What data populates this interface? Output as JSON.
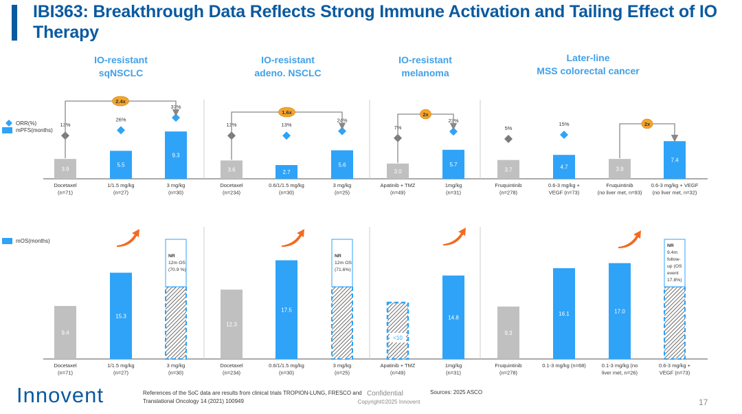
{
  "title": "IBI363: Breakthrough Data Reflects Strong Immune Activation and Tailing Effect of IO Therapy",
  "colors": {
    "title": "#0a5aa0",
    "panel_title": "#41a0e8",
    "ibi363": "#2ea3f8",
    "soc": "#c0c0c0",
    "marker_soc": "#7a7a7a",
    "badge": "#f5a42b",
    "arrow": "#f26b21"
  },
  "legend": {
    "orr": "ORR(%)",
    "mpfs": "mPFS(months)",
    "mos": "mOS(months)"
  },
  "chart_data": {
    "type": "bar",
    "title": "IBI363: Breakthrough Data Reflects Strong Immune Activation and Tailing Effect of IO Therapy",
    "panels": [
      {
        "title": [
          "IO-resistant",
          "sqNSCLC"
        ],
        "pfs": {
          "categories": [
            [
              "Docetaxel",
              "(n=71)"
            ],
            [
              "1/1.5 mg/kg",
              "(n=27)"
            ],
            [
              "3 mg/kg",
              "(n=30)"
            ]
          ],
          "values": [
            3.9,
            5.5,
            9.3
          ],
          "value_labels": [
            "3.9",
            "5.5",
            "9.3"
          ],
          "orr": [
            13,
            26,
            37
          ],
          "orr_labels": [
            "13%",
            "26%",
            "37%"
          ],
          "soc": [
            true,
            false,
            false
          ],
          "fold": {
            "label": "2.4x",
            "from": 0,
            "to": 2
          }
        },
        "os": {
          "categories": [
            [
              "Docetaxel",
              "(n=71)"
            ],
            [
              "1/1.5 mg/kg",
              "(n=27)"
            ],
            [
              "3 mg/kg",
              "(n=30)"
            ]
          ],
          "values": [
            9.4,
            15.3,
            null
          ],
          "value_labels": [
            "9.4",
            "15.3",
            ""
          ],
          "soc": [
            true,
            false,
            false
          ],
          "not_reached": [
            false,
            false,
            true
          ],
          "nr_text": [
            null,
            null,
            [
              "NR",
              "12m OS",
              "(70.9 %)"
            ]
          ]
        }
      },
      {
        "title": [
          "IO-resistant",
          "adeno. NSCLC"
        ],
        "pfs": {
          "categories": [
            [
              "Docetaxel",
              "(n=234)"
            ],
            [
              "0.6/1/1.5 mg/kg",
              "(n=30)"
            ],
            [
              "3 mg/kg",
              "(n=25)"
            ]
          ],
          "values": [
            3.6,
            2.7,
            5.6
          ],
          "value_labels": [
            "3.6",
            "2.7",
            "5.6"
          ],
          "orr": [
            13,
            13,
            24
          ],
          "orr_labels": [
            "13%",
            "13%",
            "24%"
          ],
          "soc": [
            true,
            false,
            false
          ],
          "fold": {
            "label": "1.6x",
            "from": 0,
            "to": 2
          }
        },
        "os": {
          "categories": [
            [
              "Docetaxel",
              "(n=234)"
            ],
            [
              "0.6/1/1.5 mg/kg",
              "(n=30)"
            ],
            [
              "3 mg/kg",
              "(n=25)"
            ]
          ],
          "values": [
            12.3,
            17.5,
            null
          ],
          "value_labels": [
            "12.3",
            "17.5",
            ""
          ],
          "soc": [
            true,
            false,
            false
          ],
          "not_reached": [
            false,
            false,
            true
          ],
          "nr_text": [
            null,
            null,
            [
              "NR",
              "12m OS",
              "(71.6%)"
            ]
          ]
        }
      },
      {
        "title": [
          "IO-resistant",
          "melanoma"
        ],
        "pfs": {
          "categories": [
            [
              "Apatinib + TMZ",
              "(n=49)"
            ],
            [
              "1mg/kg",
              "(n=31)"
            ]
          ],
          "values": [
            3.0,
            5.7
          ],
          "value_labels": [
            "3.0",
            "5.7"
          ],
          "orr": [
            7,
            23
          ],
          "orr_labels": [
            "7%",
            "23%"
          ],
          "soc": [
            true,
            false
          ],
          "fold": {
            "label": "2x",
            "from": 0,
            "to": 1
          }
        },
        "os": {
          "categories": [
            [
              "Apatinib + TMZ",
              "(n=49)"
            ],
            [
              "1mg/kg",
              "(n=31)"
            ]
          ],
          "values": [
            10,
            14.8
          ],
          "value_labels": [
            "<10",
            "14.8"
          ],
          "soc": [
            true,
            false
          ],
          "not_reached": [
            false,
            false
          ],
          "estimated": [
            true,
            false
          ],
          "nr_text": [
            null,
            null
          ]
        }
      },
      {
        "title": [
          "Later-line",
          "MSS colorectal cancer"
        ],
        "pfs": {
          "categories": [
            [
              "Fruquintinib",
              "(n=278)"
            ],
            [
              "0.6-3 mg/kg +",
              "VEGF (n=73)"
            ],
            [
              "Fruquintinib",
              "(no liver met, n=93)"
            ],
            [
              "0.6-3 mg/kg + VEGF",
              "(no liver met, n=32)"
            ]
          ],
          "values": [
            3.7,
            4.7,
            3.9,
            7.4
          ],
          "value_labels": [
            "3.7",
            "4.7",
            "3.9",
            "7.4"
          ],
          "orr": [
            5,
            15,
            null,
            null
          ],
          "orr_labels": [
            "5%",
            "15%",
            "",
            ""
          ],
          "soc": [
            true,
            false,
            true,
            false
          ],
          "fold": {
            "label": "2x",
            "from": 2,
            "to": 3
          }
        },
        "os": {
          "categories": [
            [
              "Fruquintinib",
              "(n=278)"
            ],
            [
              "0.1-3 mg/kg (n=68)",
              ""
            ],
            [
              "0.1-3 mg/kg (no",
              "liver met, n=26)"
            ],
            [
              "0.6-3 mg/kg +",
              "VEGF (n=73)"
            ]
          ],
          "values": [
            9.3,
            16.1,
            17.0,
            null
          ],
          "value_labels": [
            "9.3",
            "16.1",
            "17.0",
            ""
          ],
          "soc": [
            true,
            false,
            false,
            false
          ],
          "not_reached": [
            false,
            false,
            false,
            true
          ],
          "nr_text": [
            null,
            null,
            null,
            [
              "NR",
              "9.4m",
              "follow-",
              "up (OS",
              "event",
              "17.8%)"
            ]
          ]
        }
      }
    ],
    "pfs_ylim": [
      0,
      12
    ],
    "os_ylim": [
      0,
      24
    ],
    "legend_position": "left"
  },
  "footer": {
    "logo": "Innovent",
    "references": "References of the SoC data are results from clinical trials TROPION-LUNG, FRESCO and Translational Oncology 14 (2021) 100949",
    "confidential": "Confidential",
    "copyright": "Copyright©2025  Innovent",
    "sources": "Sources: 2025 ASCO",
    "page": "17"
  }
}
